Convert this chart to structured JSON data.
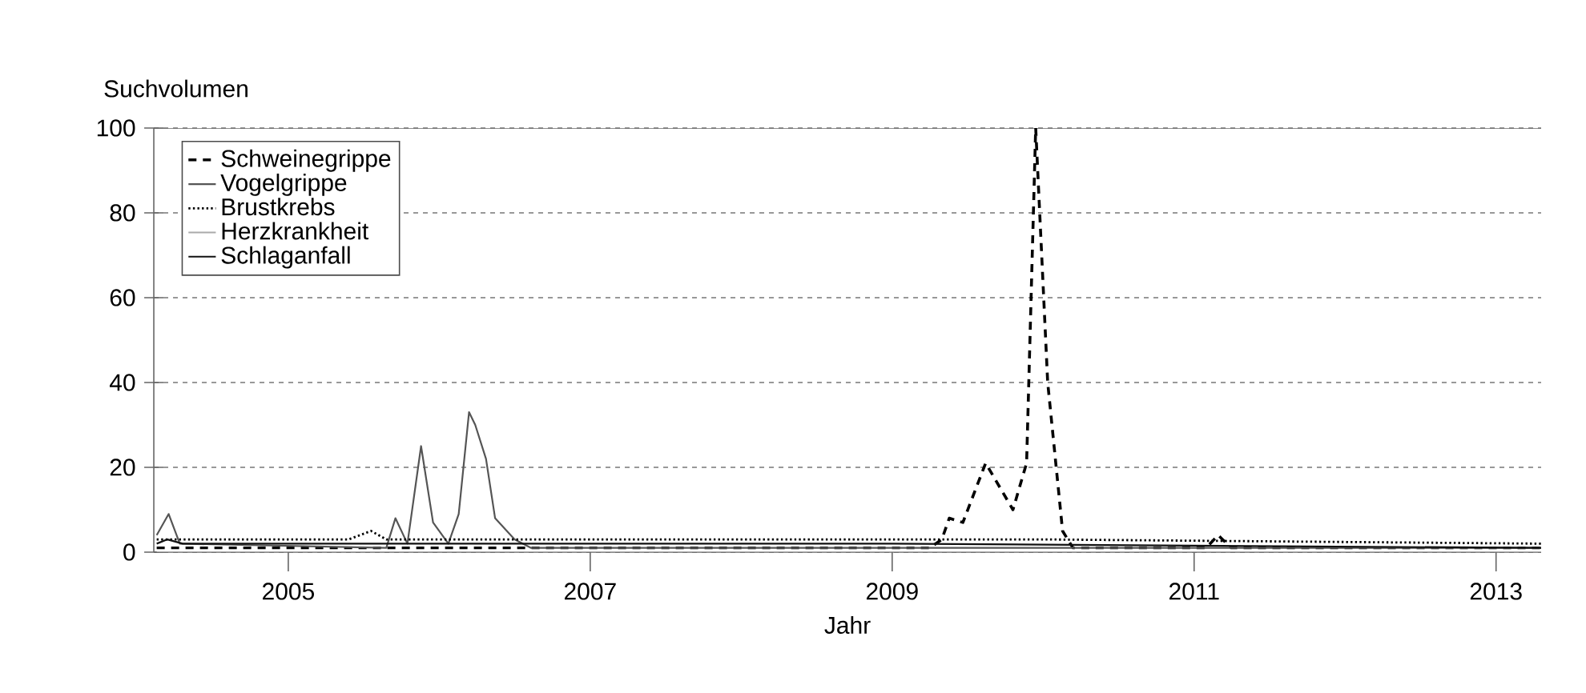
{
  "chart_data": {
    "type": "line",
    "xlabel": "Jahr",
    "ylabel": "Suchvolumen",
    "xlim": [
      "2004-02-10",
      "2013-04-20"
    ],
    "ylim": [
      0,
      100
    ],
    "xticks": [
      "2005",
      "2007",
      "2009",
      "2011",
      "2013"
    ],
    "yticks": [
      0,
      20,
      40,
      60,
      80,
      100
    ],
    "grid": "y",
    "legend": "top left",
    "series": [
      {
        "name": "Schweinegrippe",
        "color": "#000000",
        "line_style": "dashed",
        "x": [
          "2004-02-17",
          "2009-04-02",
          "2009-05-01",
          "2009-05-19",
          "2009-06-21",
          "2009-08-15",
          "2009-10-20",
          "2009-11-22",
          "2009-12-14",
          "2010-01-12",
          "2010-02-17",
          "2010-03-14",
          "2011-01-30",
          "2011-02-28",
          "2011-04-01",
          "2013-04-20"
        ],
        "values": [
          1,
          1,
          3,
          8,
          7,
          21,
          10,
          21,
          100,
          40,
          5,
          1,
          1,
          4,
          1,
          1
        ]
      },
      {
        "name": "Vogelgrippe",
        "color": "#555555",
        "line_style": "solid",
        "x": [
          "2004-02-17",
          "2004-03-17",
          "2004-04-13",
          "2005-08-26",
          "2005-09-17",
          "2005-10-16",
          "2005-11-18",
          "2005-12-17",
          "2006-01-23",
          "2006-02-17",
          "2006-03-14",
          "2006-03-29",
          "2006-04-24",
          "2006-05-16",
          "2006-07-02",
          "2006-08-11",
          "2013-04-20"
        ],
        "values": [
          4,
          9,
          2,
          1,
          8,
          2,
          25,
          7,
          2,
          9,
          33,
          30,
          22,
          8,
          3,
          1,
          1
        ]
      },
      {
        "name": "Brustkrebs",
        "color": "#000000",
        "line_style": "dotted",
        "x": [
          "2004-02-17",
          "2005-05-27",
          "2005-07-20",
          "2005-08-26",
          "2010-01-01",
          "2013-04-20"
        ],
        "values": [
          3,
          3,
          5,
          3,
          3,
          2
        ]
      },
      {
        "name": "Herzkrankheit",
        "color": "#aaaaaa",
        "line_style": "solid",
        "x": [
          "2004-02-17",
          "2013-04-20"
        ],
        "values": [
          0,
          0
        ]
      },
      {
        "name": "Schlaganfall",
        "color": "#111111",
        "line_style": "solid",
        "x": [
          "2004-02-17",
          "2004-03-14",
          "2004-04-20",
          "2009-01-01",
          "2013-04-20"
        ],
        "values": [
          2,
          3,
          2,
          2,
          1
        ]
      }
    ]
  }
}
